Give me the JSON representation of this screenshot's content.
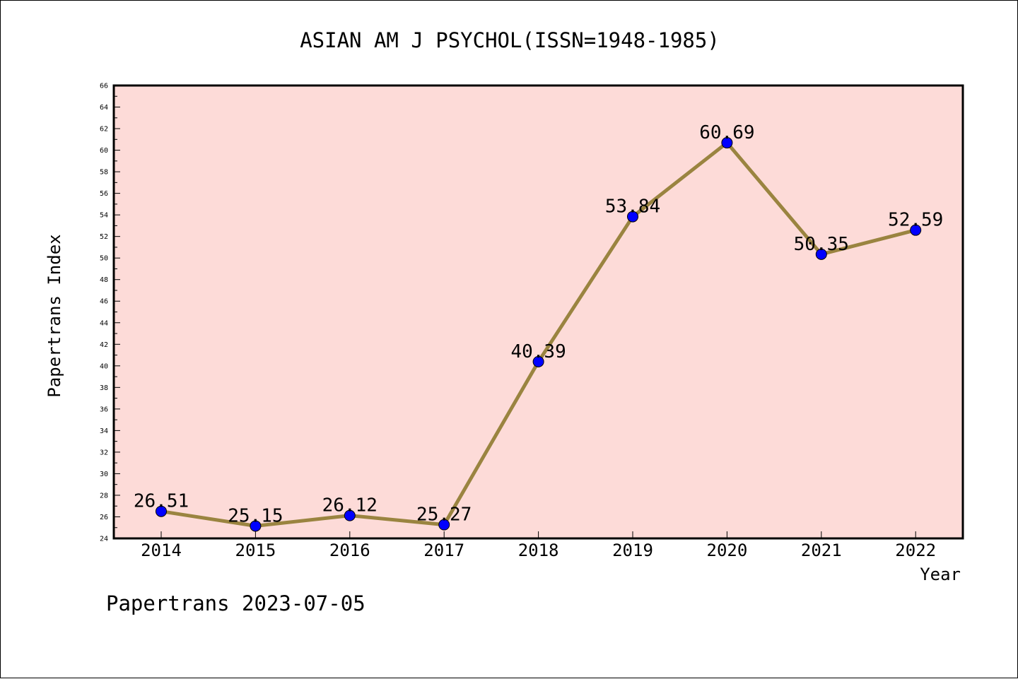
{
  "chart_data": {
    "type": "line",
    "title": "ASIAN AM J PSYCHOL(ISSN=1948-1985)",
    "xlabel": "Year",
    "ylabel": "Papertrans Index",
    "categories": [
      "2014",
      "2015",
      "2016",
      "2017",
      "2018",
      "2019",
      "2020",
      "2021",
      "2022"
    ],
    "series": [
      {
        "values": [
          26.51,
          25.15,
          26.12,
          25.27,
          40.39,
          53.84,
          60.69,
          50.35,
          52.59
        ],
        "labels": [
          "26.51",
          "25.15",
          "26.12",
          "25.27",
          "40.39",
          "53.84",
          "60.69",
          "50.35",
          "52.59"
        ],
        "line_color": "#9a8440",
        "marker_color": "#0000ff"
      }
    ],
    "ylim": [
      24,
      66
    ],
    "ytick_step": 2,
    "grid": false,
    "legend": "none",
    "plot_background": "#fddbd8"
  },
  "footer": "Papertrans 2023-07-05"
}
